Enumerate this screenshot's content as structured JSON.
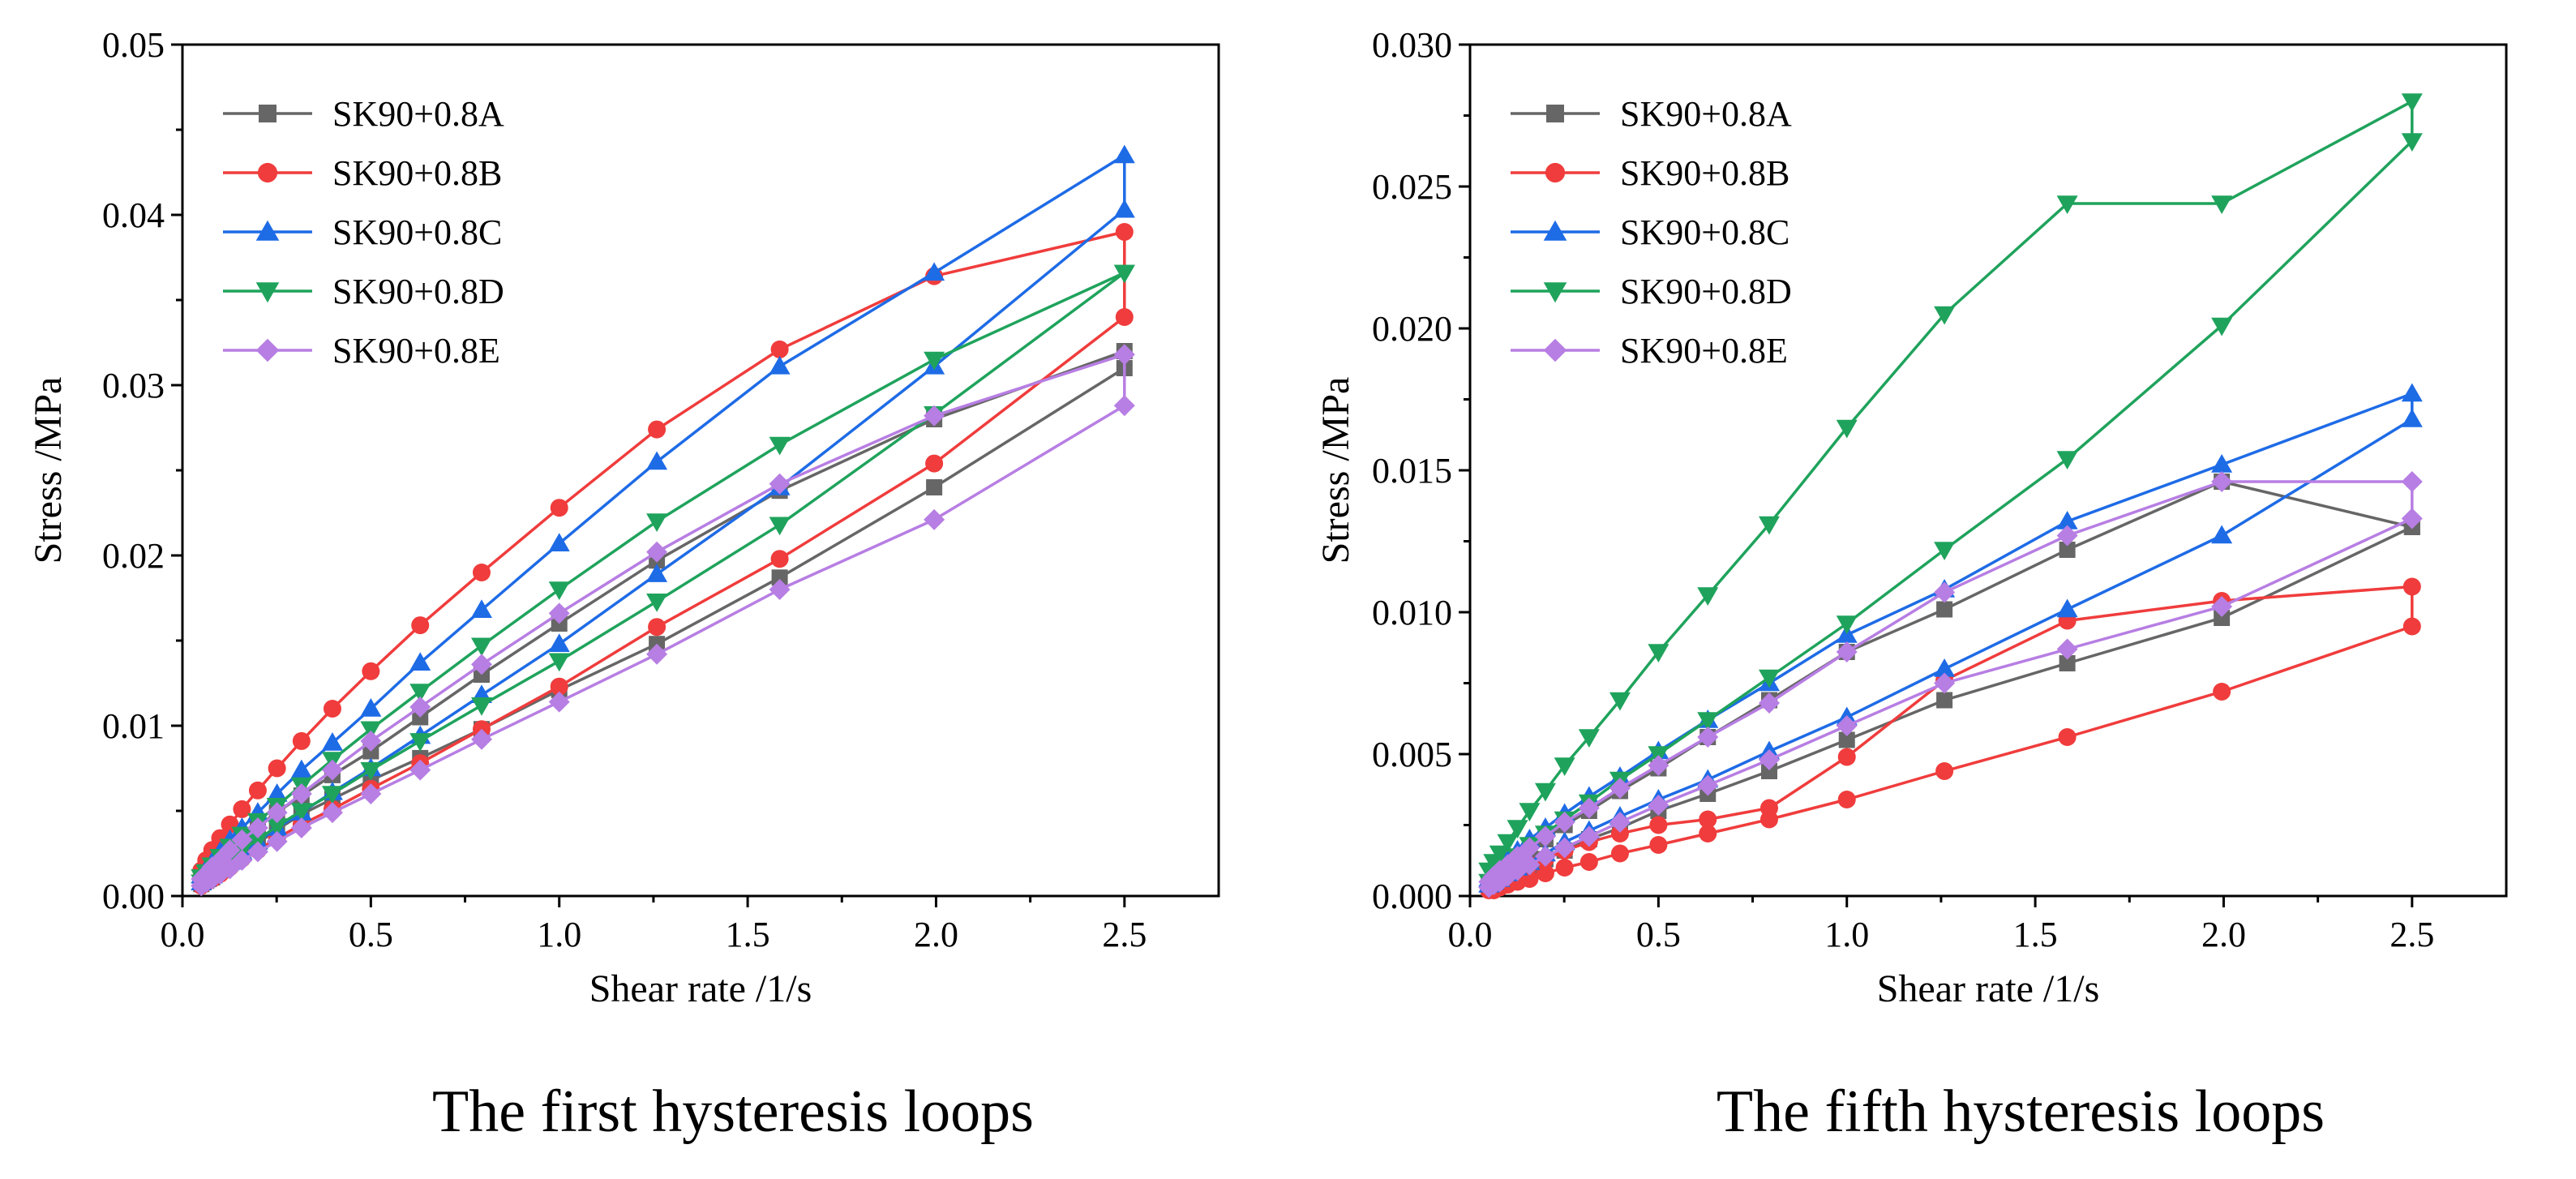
{
  "chart_data": [
    {
      "type": "line",
      "title": "",
      "caption": "The first hysteresis loops",
      "xlabel": "Shear rate /1/s",
      "ylabel": "Stress /MPa",
      "xlim": [
        0.0,
        2.75
      ],
      "ylim": [
        0.0,
        0.05
      ],
      "xticks": [
        "0.0",
        "0.5",
        "1.0",
        "1.5",
        "2.0",
        "2.5"
      ],
      "yticks": [
        "0.00",
        "0.01",
        "0.02",
        "0.03",
        "0.04",
        "0.05"
      ],
      "legend_position": "top-left",
      "series": [
        {
          "name": "SK90+0.8A",
          "color": "#666666",
          "marker": "square",
          "x": [
            0.05,
            0.063,
            0.079,
            0.1,
            0.126,
            0.158,
            0.2,
            0.251,
            0.316,
            0.398,
            0.5,
            0.631,
            0.794,
            1.0,
            1.259,
            1.585,
            1.995,
            2.5,
            2.5,
            1.995,
            1.585,
            1.259,
            1.0,
            0.794,
            0.631,
            0.5,
            0.398,
            0.316,
            0.251,
            0.2,
            0.158,
            0.126,
            0.1,
            0.079,
            0.063,
            0.05
          ],
          "y": [
            0.0009,
            0.0012,
            0.0016,
            0.0021,
            0.0027,
            0.0033,
            0.0041,
            0.0049,
            0.0059,
            0.0071,
            0.0085,
            0.0105,
            0.013,
            0.016,
            0.0197,
            0.0238,
            0.028,
            0.032,
            0.031,
            0.024,
            0.0187,
            0.0148,
            0.0121,
            0.0098,
            0.0081,
            0.0068,
            0.0057,
            0.0048,
            0.0039,
            0.0031,
            0.0025,
            0.0019,
            0.0015,
            0.0011,
            0.0009,
            0.0007
          ]
        },
        {
          "name": "SK90+0.8B",
          "color": "#f03c3c",
          "marker": "circle",
          "x": [
            0.05,
            0.063,
            0.079,
            0.1,
            0.126,
            0.158,
            0.2,
            0.251,
            0.316,
            0.398,
            0.5,
            0.631,
            0.794,
            1.0,
            1.259,
            1.585,
            1.995,
            2.5,
            2.5,
            1.995,
            1.585,
            1.259,
            1.0,
            0.794,
            0.631,
            0.5,
            0.398,
            0.316,
            0.251,
            0.2,
            0.158,
            0.126,
            0.1,
            0.079,
            0.063,
            0.05
          ],
          "y": [
            0.0015,
            0.0021,
            0.0027,
            0.0034,
            0.0042,
            0.0051,
            0.0062,
            0.0075,
            0.0091,
            0.011,
            0.0132,
            0.0159,
            0.019,
            0.0228,
            0.0274,
            0.0321,
            0.0364,
            0.039,
            0.034,
            0.0254,
            0.0198,
            0.0158,
            0.0123,
            0.0098,
            0.0078,
            0.0063,
            0.0051,
            0.0042,
            0.0034,
            0.0027,
            0.0022,
            0.0017,
            0.0013,
            0.001,
            0.0008,
            0.0006
          ]
        },
        {
          "name": "SK90+0.8C",
          "color": "#1e6be6",
          "marker": "triangle-up",
          "x": [
            0.05,
            0.063,
            0.079,
            0.1,
            0.126,
            0.158,
            0.2,
            0.251,
            0.316,
            0.398,
            0.5,
            0.631,
            0.794,
            1.0,
            1.259,
            1.585,
            1.995,
            2.5,
            2.5,
            1.995,
            1.585,
            1.259,
            1.0,
            0.794,
            0.631,
            0.5,
            0.398,
            0.316,
            0.251,
            0.2,
            0.158,
            0.126,
            0.1,
            0.079,
            0.063,
            0.05
          ],
          "y": [
            0.0012,
            0.0016,
            0.002,
            0.0026,
            0.0033,
            0.004,
            0.0049,
            0.006,
            0.0074,
            0.009,
            0.011,
            0.0137,
            0.0168,
            0.0207,
            0.0255,
            0.0311,
            0.0366,
            0.0435,
            0.0403,
            0.0311,
            0.024,
            0.0189,
            0.0148,
            0.0118,
            0.0094,
            0.0075,
            0.0061,
            0.0049,
            0.004,
            0.0032,
            0.0026,
            0.002,
            0.0016,
            0.0012,
            0.001,
            0.0008
          ]
        },
        {
          "name": "SK90+0.8D",
          "color": "#1fa35c",
          "marker": "triangle-down",
          "x": [
            0.05,
            0.063,
            0.079,
            0.1,
            0.126,
            0.158,
            0.2,
            0.251,
            0.316,
            0.398,
            0.5,
            0.631,
            0.794,
            1.0,
            1.259,
            1.585,
            1.995,
            2.5,
            2.5,
            1.995,
            1.585,
            1.259,
            1.0,
            0.794,
            0.631,
            0.5,
            0.398,
            0.316,
            0.251,
            0.2,
            0.158,
            0.126,
            0.1,
            0.079,
            0.063,
            0.05
          ],
          "y": [
            0.0011,
            0.0014,
            0.0018,
            0.0023,
            0.0029,
            0.0036,
            0.0044,
            0.0053,
            0.0065,
            0.008,
            0.0098,
            0.012,
            0.0147,
            0.018,
            0.022,
            0.0265,
            0.0315,
            0.0366,
            0.0366,
            0.0283,
            0.0218,
            0.0173,
            0.0138,
            0.0112,
            0.0091,
            0.0074,
            0.006,
            0.005,
            0.0041,
            0.0033,
            0.0027,
            0.0021,
            0.0017,
            0.0013,
            0.001,
            0.0008
          ]
        },
        {
          "name": "SK90+0.8E",
          "color": "#b77ee3",
          "marker": "diamond",
          "x": [
            0.05,
            0.063,
            0.079,
            0.1,
            0.126,
            0.158,
            0.2,
            0.251,
            0.316,
            0.398,
            0.5,
            0.631,
            0.794,
            1.0,
            1.259,
            1.585,
            1.995,
            2.5,
            2.5,
            1.995,
            1.585,
            1.259,
            1.0,
            0.794,
            0.631,
            0.5,
            0.398,
            0.316,
            0.251,
            0.2,
            0.158,
            0.126,
            0.1,
            0.079,
            0.063,
            0.05
          ],
          "y": [
            0.001,
            0.0013,
            0.0017,
            0.0021,
            0.0027,
            0.0033,
            0.004,
            0.0049,
            0.006,
            0.0074,
            0.0091,
            0.0111,
            0.0136,
            0.0166,
            0.0202,
            0.0242,
            0.0282,
            0.0318,
            0.0288,
            0.0221,
            0.018,
            0.0142,
            0.0114,
            0.0092,
            0.0074,
            0.006,
            0.0049,
            0.004,
            0.0032,
            0.0026,
            0.0021,
            0.0016,
            0.0013,
            0.001,
            0.0008,
            0.0006
          ]
        }
      ]
    },
    {
      "type": "line",
      "title": "",
      "caption": "The fifth hysteresis loops",
      "xlabel": "Shear rate /1/s",
      "ylabel": "Stress /MPa",
      "xlim": [
        0.0,
        2.75
      ],
      "ylim": [
        0.0,
        0.03
      ],
      "xticks": [
        "0.0",
        "0.5",
        "1.0",
        "1.5",
        "2.0",
        "2.5"
      ],
      "yticks": [
        "0.000",
        "0.005",
        "0.010",
        "0.015",
        "0.020",
        "0.025",
        "0.030"
      ],
      "legend_position": "top-left",
      "series": [
        {
          "name": "SK90+0.8A",
          "color": "#666666",
          "marker": "square",
          "x": [
            0.05,
            0.063,
            0.079,
            0.1,
            0.126,
            0.158,
            0.2,
            0.251,
            0.316,
            0.398,
            0.5,
            0.631,
            0.794,
            1.0,
            1.259,
            1.585,
            1.995,
            2.5,
            2.5,
            1.995,
            1.585,
            1.259,
            1.0,
            0.794,
            0.631,
            0.5,
            0.398,
            0.316,
            0.251,
            0.2,
            0.158,
            0.126,
            0.1,
            0.079,
            0.063,
            0.05
          ],
          "y": [
            0.0004,
            0.0006,
            0.0008,
            0.001,
            0.0013,
            0.0016,
            0.002,
            0.0025,
            0.003,
            0.0037,
            0.0045,
            0.0056,
            0.0069,
            0.0086,
            0.0101,
            0.0122,
            0.0146,
            0.013,
            0.013,
            0.0098,
            0.0082,
            0.0069,
            0.0055,
            0.0044,
            0.0036,
            0.003,
            0.0024,
            0.002,
            0.0016,
            0.0013,
            0.001,
            0.0008,
            0.0006,
            0.0005,
            0.0004,
            0.0003
          ]
        },
        {
          "name": "SK90+0.8B",
          "color": "#f03c3c",
          "marker": "circle",
          "x": [
            0.05,
            0.063,
            0.079,
            0.1,
            0.126,
            0.158,
            0.2,
            0.251,
            0.316,
            0.398,
            0.5,
            0.631,
            0.794,
            1.0,
            1.259,
            1.585,
            1.995,
            2.5,
            2.5,
            1.995,
            1.585,
            1.259,
            1.0,
            0.794,
            0.631,
            0.5,
            0.398,
            0.316,
            0.251,
            0.2,
            0.158,
            0.126,
            0.1,
            0.079,
            0.063,
            0.05
          ],
          "y": [
            0.0003,
            0.0004,
            0.0005,
            0.0007,
            0.0009,
            0.0011,
            0.0013,
            0.0016,
            0.0019,
            0.0022,
            0.0025,
            0.0027,
            0.0031,
            0.0049,
            0.0076,
            0.0097,
            0.0104,
            0.0109,
            0.0095,
            0.0072,
            0.0056,
            0.0044,
            0.0034,
            0.0027,
            0.0022,
            0.0018,
            0.0015,
            0.0012,
            0.001,
            0.0008,
            0.0006,
            0.0005,
            0.0004,
            0.0003,
            0.0002,
            0.0002
          ]
        },
        {
          "name": "SK90+0.8C",
          "color": "#1e6be6",
          "marker": "triangle-up",
          "x": [
            0.05,
            0.063,
            0.079,
            0.1,
            0.126,
            0.158,
            0.2,
            0.251,
            0.316,
            0.398,
            0.5,
            0.631,
            0.794,
            1.0,
            1.259,
            1.585,
            1.995,
            2.5,
            2.5,
            1.995,
            1.585,
            1.259,
            1.0,
            0.794,
            0.631,
            0.5,
            0.398,
            0.316,
            0.251,
            0.2,
            0.158,
            0.126,
            0.1,
            0.079,
            0.063,
            0.05
          ],
          "y": [
            0.0006,
            0.0008,
            0.001,
            0.0013,
            0.0016,
            0.002,
            0.0024,
            0.0029,
            0.0035,
            0.0042,
            0.0051,
            0.0062,
            0.0075,
            0.0092,
            0.0108,
            0.0132,
            0.0152,
            0.0177,
            0.0168,
            0.0127,
            0.0101,
            0.008,
            0.0063,
            0.0051,
            0.0041,
            0.0034,
            0.0028,
            0.0023,
            0.0019,
            0.0015,
            0.0012,
            0.001,
            0.0008,
            0.0006,
            0.0005,
            0.0004
          ]
        },
        {
          "name": "SK90+0.8D",
          "color": "#1fa35c",
          "marker": "triangle-down",
          "x": [
            0.05,
            0.063,
            0.079,
            0.1,
            0.126,
            0.158,
            0.2,
            0.251,
            0.316,
            0.398,
            0.5,
            0.631,
            0.794,
            1.0,
            1.259,
            1.585,
            1.995,
            2.5,
            2.5,
            1.995,
            1.585,
            1.259,
            1.0,
            0.794,
            0.631,
            0.5,
            0.398,
            0.316,
            0.251,
            0.2,
            0.158,
            0.126,
            0.1,
            0.079,
            0.063,
            0.05
          ],
          "y": [
            0.0009,
            0.0012,
            0.0015,
            0.0019,
            0.0024,
            0.003,
            0.0037,
            0.0046,
            0.0056,
            0.0069,
            0.0086,
            0.0106,
            0.0131,
            0.0165,
            0.0205,
            0.0244,
            0.0244,
            0.028,
            0.0266,
            0.0201,
            0.0154,
            0.0122,
            0.0096,
            0.0077,
            0.0062,
            0.005,
            0.0041,
            0.0033,
            0.0027,
            0.0022,
            0.0018,
            0.0014,
            0.0011,
            0.0009,
            0.0007,
            0.0005
          ]
        },
        {
          "name": "SK90+0.8E",
          "color": "#b77ee3",
          "marker": "diamond",
          "x": [
            0.05,
            0.063,
            0.079,
            0.1,
            0.126,
            0.158,
            0.2,
            0.251,
            0.316,
            0.398,
            0.5,
            0.631,
            0.794,
            1.0,
            1.259,
            1.585,
            1.995,
            2.5,
            2.5,
            1.995,
            1.585,
            1.259,
            1.0,
            0.794,
            0.631,
            0.5,
            0.398,
            0.316,
            0.251,
            0.2,
            0.158,
            0.126,
            0.1,
            0.079,
            0.063,
            0.05
          ],
          "y": [
            0.0005,
            0.0007,
            0.0009,
            0.0011,
            0.0014,
            0.0017,
            0.0021,
            0.0026,
            0.0031,
            0.0038,
            0.0046,
            0.0056,
            0.0068,
            0.0086,
            0.0107,
            0.0127,
            0.0146,
            0.0146,
            0.0133,
            0.0102,
            0.0087,
            0.0075,
            0.006,
            0.0048,
            0.0039,
            0.0032,
            0.0026,
            0.0021,
            0.0017,
            0.0014,
            0.0011,
            0.0009,
            0.0007,
            0.0005,
            0.0004,
            0.0003
          ]
        }
      ]
    }
  ]
}
